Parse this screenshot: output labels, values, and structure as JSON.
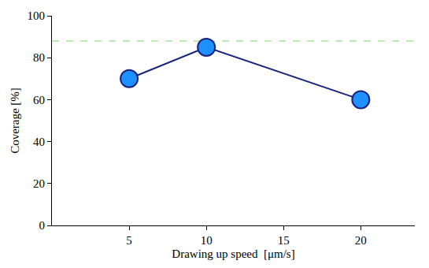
{
  "chart_data": {
    "type": "line",
    "x_label": "Drawing up speed  [μm/s]",
    "y_label": "Coverage [%]",
    "x": [
      5,
      10,
      20
    ],
    "series": [
      {
        "values": [
          70,
          85,
          60
        ],
        "color": "#1e90ff",
        "marker": "circle",
        "line_style": "solid"
      }
    ],
    "reference_line": {
      "value": 88,
      "color": "#a8e6a0",
      "line_style": "dashed"
    },
    "xlim": [
      0,
      23.5
    ],
    "xticks": [
      5,
      10,
      15,
      20
    ],
    "ylim": [
      0,
      100
    ],
    "yticks": [
      0,
      20,
      40,
      60,
      80,
      100
    ],
    "grid": false
  }
}
